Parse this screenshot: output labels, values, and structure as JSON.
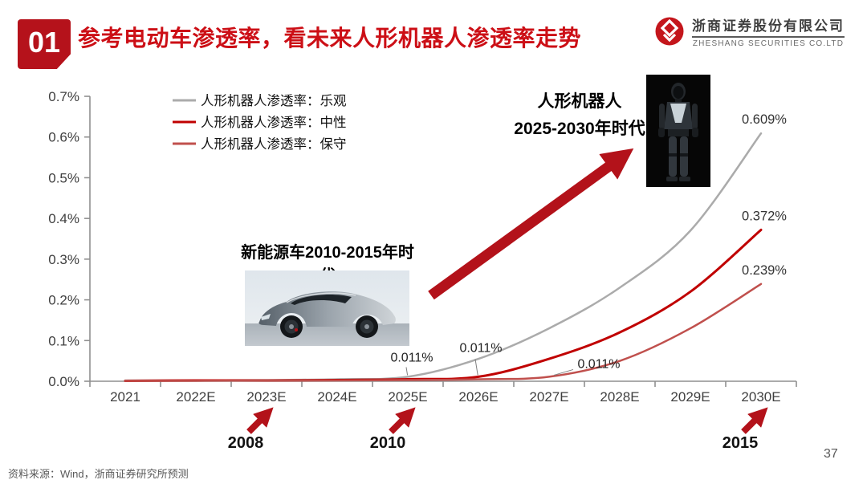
{
  "slide": {
    "badge": "01",
    "title": "参考电动车渗透率，看未来人形机器人渗透率走势"
  },
  "logo": {
    "cn": "浙商证券股份有限公司",
    "en": "ZHESHANG SECURITIES CO.LTD"
  },
  "colors": {
    "brand_red": "#b5121b",
    "title_red": "#cc0f16",
    "arrow_red": "#b3121a",
    "axis_gray": "#8f8f8f",
    "label_dark": "#3f3f3f"
  },
  "annotations": {
    "robot_era_line1": "人形机器人",
    "robot_era_line2": "2025-2030年时代",
    "ev_era": "新能源车2010-2015年时代",
    "milestones": [
      {
        "year": "2008"
      },
      {
        "year": "2010"
      },
      {
        "year": "2015"
      }
    ]
  },
  "chart_data": {
    "type": "line",
    "title": "",
    "x": [
      "2021",
      "2022E",
      "2023E",
      "2024E",
      "2025E",
      "2026E",
      "2027E",
      "2028E",
      "2029E",
      "2030E"
    ],
    "yticks": [
      "0.0%",
      "0.1%",
      "0.2%",
      "0.3%",
      "0.4%",
      "0.5%",
      "0.6%",
      "0.7%"
    ],
    "ylim": [
      0,
      0.7
    ],
    "grid": false,
    "legend_position": "top-left-inside",
    "series": [
      {
        "name": "人形机器人渗透率：乐观",
        "color": "#ababab",
        "width": 2.5,
        "values": [
          0.002,
          0.002,
          0.003,
          0.005,
          0.011,
          0.055,
          0.13,
          0.23,
          0.37,
          0.609
        ],
        "end_label": "0.609%"
      },
      {
        "name": "人形机器人渗透率：中性",
        "color": "#c00000",
        "width": 3,
        "values": [
          0.001,
          0.002,
          0.002,
          0.003,
          0.005,
          0.011,
          0.055,
          0.12,
          0.22,
          0.372
        ],
        "end_label": "0.372%"
      },
      {
        "name": "人形机器人渗透率：保守",
        "color": "#c0504d",
        "width": 2.5,
        "values": [
          0.001,
          0.001,
          0.002,
          0.002,
          0.003,
          0.005,
          0.011,
          0.05,
          0.13,
          0.239
        ],
        "end_label": "0.239%"
      }
    ],
    "point_labels": [
      {
        "series": 0,
        "x_index": 4,
        "x": "2025E",
        "value": 0.011,
        "text": "0.011%"
      },
      {
        "series": 1,
        "x_index": 5,
        "x": "2026E",
        "value": 0.011,
        "text": "0.011%"
      },
      {
        "series": 2,
        "x_index": 6,
        "x": "2027E",
        "value": 0.011,
        "text": "0.011%"
      }
    ]
  },
  "footer": {
    "source": "资料来源：Wind，浙商证券研究所预测",
    "page": "37"
  }
}
